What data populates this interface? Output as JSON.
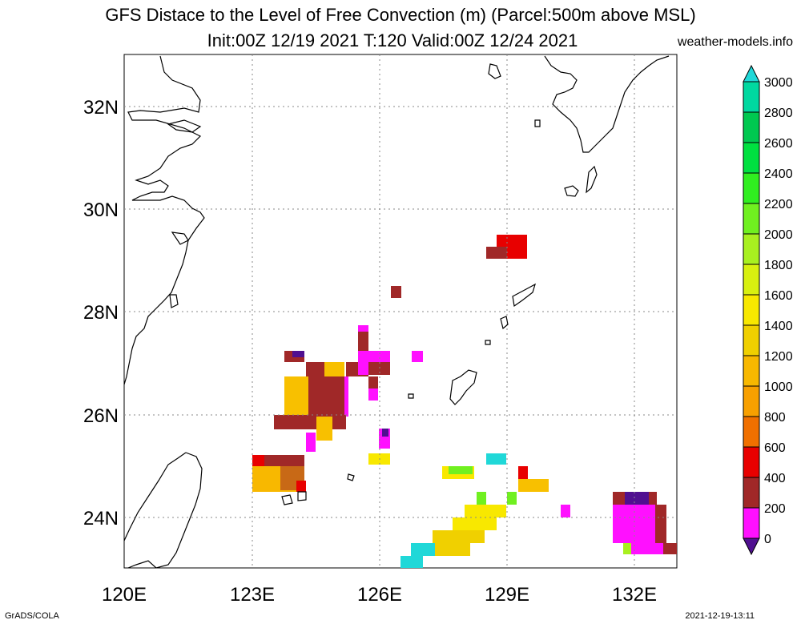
{
  "header": {
    "title_line1": "GFS Distace to the Level of Free Convection (m) (Parcel:500m above MSL)",
    "title_line2": "Init:00Z 12/19 2021 T:120 Valid:00Z 12/24 2021",
    "site": "weather-models.info"
  },
  "footer": {
    "left": "GrADS/COLA",
    "right": "2021-12-19-13:11"
  },
  "map": {
    "lon_labels": [
      "120E",
      "123E",
      "126E",
      "129E",
      "132E"
    ],
    "lat_labels": [
      "32N",
      "30N",
      "28N",
      "26N",
      "24N"
    ],
    "lon_range": [
      120,
      133
    ],
    "lat_range": [
      23,
      33
    ]
  },
  "colorbar": {
    "labels": [
      "3000",
      "2800",
      "2600",
      "2400",
      "2200",
      "2000",
      "1800",
      "1600",
      "1400",
      "1200",
      "1000",
      "800",
      "600",
      "400",
      "200",
      "0"
    ],
    "colors": [
      "#20d8d8",
      "#00d8a0",
      "#00c850",
      "#00e040",
      "#30ee20",
      "#70f020",
      "#a8f020",
      "#d8f010",
      "#f8e800",
      "#f0d000",
      "#f8b800",
      "#f8a000",
      "#f07000",
      "#e80000",
      "#a02828",
      "#ff10ff",
      "#501090"
    ]
  }
}
